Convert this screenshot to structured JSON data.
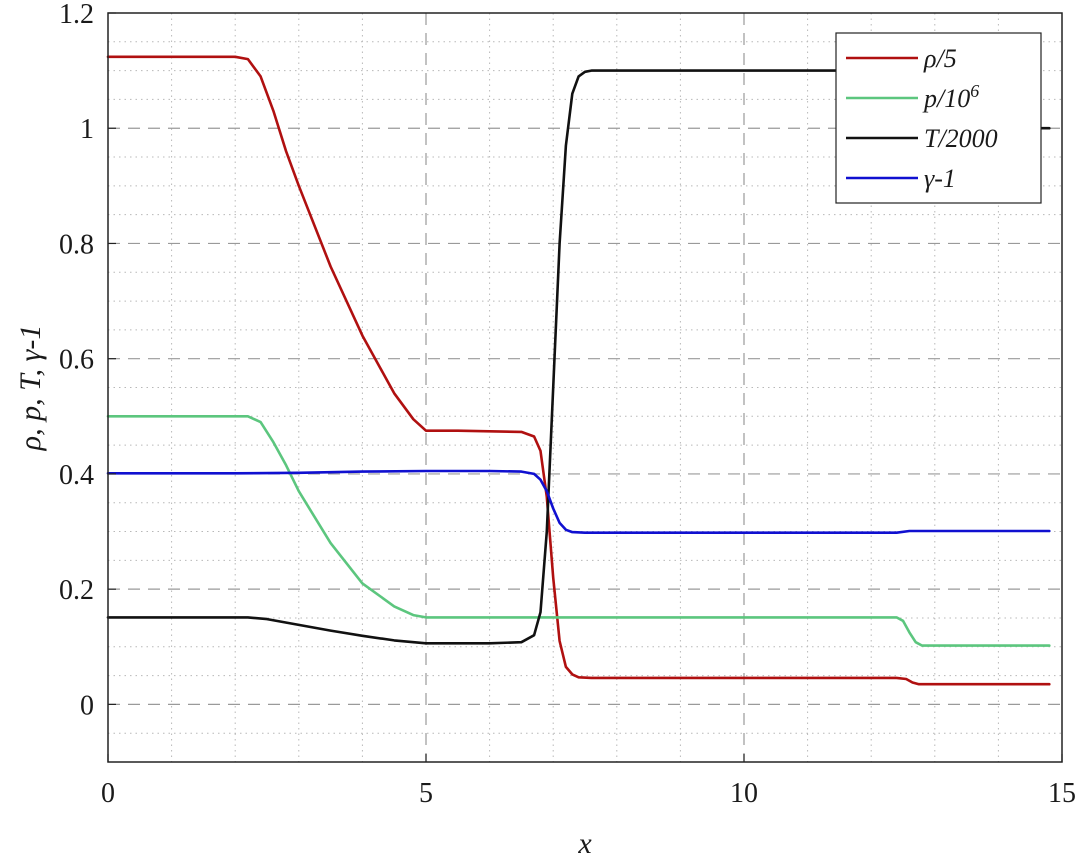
{
  "chart_data": {
    "type": "line",
    "title": "",
    "xlabel": "x",
    "ylabel": "ρ,  p,  T,  γ-1",
    "xlim": [
      0,
      15
    ],
    "ylim": [
      -0.1,
      1.2
    ],
    "x_ticks": [
      0,
      5,
      10,
      15
    ],
    "x_tick_labels": [
      "0",
      "5",
      "10",
      "15"
    ],
    "y_ticks": [
      0,
      0.2,
      0.4,
      0.6,
      0.8,
      1,
      1.2
    ],
    "y_tick_labels": [
      "0",
      "0.2",
      "0.4",
      "0.6",
      "0.8",
      "1",
      "1.2"
    ],
    "grid": true,
    "minor_grid": true,
    "legend_position": "top-right",
    "series": [
      {
        "name": "ρ/5",
        "color": "#b01010",
        "x": [
          0,
          2.0,
          2.2,
          2.4,
          2.6,
          2.8,
          3.0,
          3.5,
          4.0,
          4.5,
          4.8,
          5.0,
          5.5,
          6.0,
          6.5,
          6.7,
          6.8,
          6.9,
          7.0,
          7.1,
          7.2,
          7.3,
          7.4,
          7.6,
          8.0,
          10.0,
          12.4,
          12.55,
          12.65,
          12.75,
          14.8
        ],
        "y": [
          1.124,
          1.124,
          1.12,
          1.09,
          1.03,
          0.96,
          0.9,
          0.76,
          0.64,
          0.54,
          0.495,
          0.475,
          0.475,
          0.474,
          0.473,
          0.465,
          0.44,
          0.36,
          0.22,
          0.11,
          0.065,
          0.052,
          0.047,
          0.046,
          0.046,
          0.046,
          0.046,
          0.044,
          0.038,
          0.035,
          0.035
        ]
      },
      {
        "name": "p/10^6",
        "color": "#5cc67e",
        "x": [
          0,
          2.2,
          2.4,
          2.6,
          2.8,
          3.0,
          3.5,
          4.0,
          4.5,
          4.8,
          5.0,
          6.0,
          8.0,
          10.0,
          12.4,
          12.5,
          12.6,
          12.7,
          12.8,
          14.8
        ],
        "y": [
          0.5,
          0.5,
          0.49,
          0.455,
          0.415,
          0.37,
          0.28,
          0.21,
          0.17,
          0.155,
          0.151,
          0.151,
          0.151,
          0.151,
          0.151,
          0.145,
          0.125,
          0.108,
          0.102,
          0.102
        ]
      },
      {
        "name": "T/2000",
        "color": "#111111",
        "x": [
          0,
          2.2,
          2.5,
          3.0,
          3.5,
          4.0,
          4.5,
          5.0,
          5.5,
          6.0,
          6.5,
          6.7,
          6.8,
          6.9,
          7.0,
          7.1,
          7.2,
          7.3,
          7.4,
          7.5,
          7.6,
          8.0,
          10.0,
          12.6,
          12.7,
          12.8,
          14.8
        ],
        "y": [
          0.151,
          0.151,
          0.148,
          0.138,
          0.128,
          0.119,
          0.111,
          0.106,
          0.106,
          0.106,
          0.108,
          0.12,
          0.16,
          0.3,
          0.55,
          0.8,
          0.97,
          1.06,
          1.09,
          1.098,
          1.1,
          1.1,
          1.1,
          1.1,
          1.095,
          1.0,
          1.0
        ]
      },
      {
        "name": "γ-1",
        "color": "#1010d0",
        "x": [
          0,
          2.0,
          3.0,
          4.0,
          5.0,
          6.0,
          6.5,
          6.7,
          6.8,
          6.9,
          7.0,
          7.1,
          7.2,
          7.3,
          7.5,
          8.0,
          10.0,
          12.4,
          12.6,
          12.8,
          14.8
        ],
        "y": [
          0.401,
          0.401,
          0.402,
          0.404,
          0.405,
          0.405,
          0.404,
          0.4,
          0.39,
          0.37,
          0.34,
          0.315,
          0.303,
          0.299,
          0.298,
          0.298,
          0.298,
          0.298,
          0.301,
          0.301,
          0.301
        ]
      }
    ]
  }
}
